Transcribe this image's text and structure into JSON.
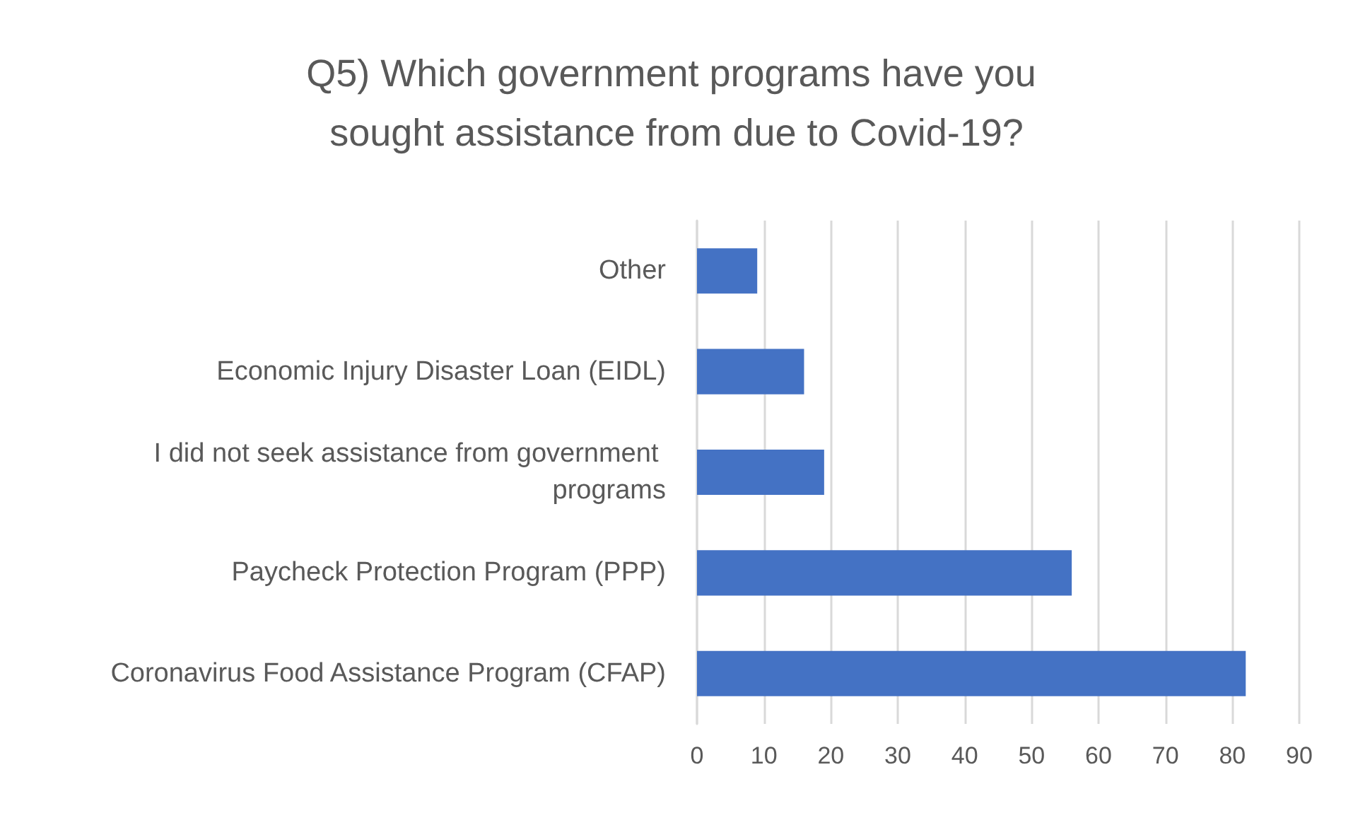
{
  "chart_data": {
    "type": "bar",
    "orientation": "horizontal",
    "title": "Q5) Which government programs have you sought assistance from due to Covid-19?",
    "categories": [
      "Other",
      "Economic Injury Disaster Loan (EIDL)",
      "I did not seek assistance from government programs",
      "Paycheck Protection Program (PPP)",
      "Coronavirus Food Assistance Program (CFAP)"
    ],
    "values": [
      9,
      16,
      19,
      56,
      82
    ],
    "color": "#4472c4",
    "xlim": [
      0,
      90
    ],
    "xticks": [
      0,
      10,
      20,
      30,
      40,
      50,
      60,
      70,
      80,
      90
    ],
    "grid": "x"
  }
}
